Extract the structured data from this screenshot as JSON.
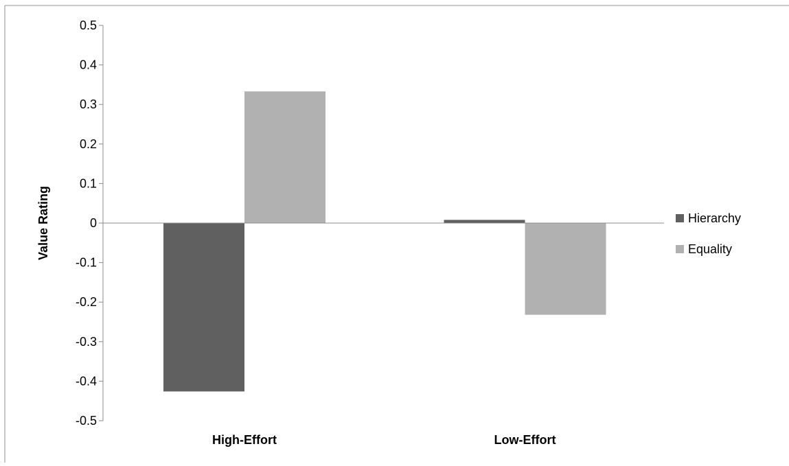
{
  "chart_data": {
    "type": "bar",
    "title": "",
    "xlabel": "",
    "ylabel": "Value Rating",
    "ylim": [
      -0.5,
      0.5
    ],
    "yticks": [
      "0.5",
      "0.4",
      "0.3",
      "0.2",
      "0.1",
      "0",
      "-0.1",
      "-0.2",
      "-0.3",
      "-0.4",
      "-0.5"
    ],
    "ytick_values": [
      0.5,
      0.4,
      0.3,
      0.2,
      0.1,
      0,
      -0.1,
      -0.2,
      -0.3,
      -0.4,
      -0.5
    ],
    "categories": [
      "High-Effort",
      "Low-Effort"
    ],
    "series": [
      {
        "name": "Hierarchy",
        "color": "#606060",
        "values": [
          -0.426,
          0.008
        ]
      },
      {
        "name": "Equality",
        "color": "#b1b1b1",
        "values": [
          0.333,
          -0.232
        ]
      }
    ],
    "grid": false,
    "legend_position": "right"
  }
}
